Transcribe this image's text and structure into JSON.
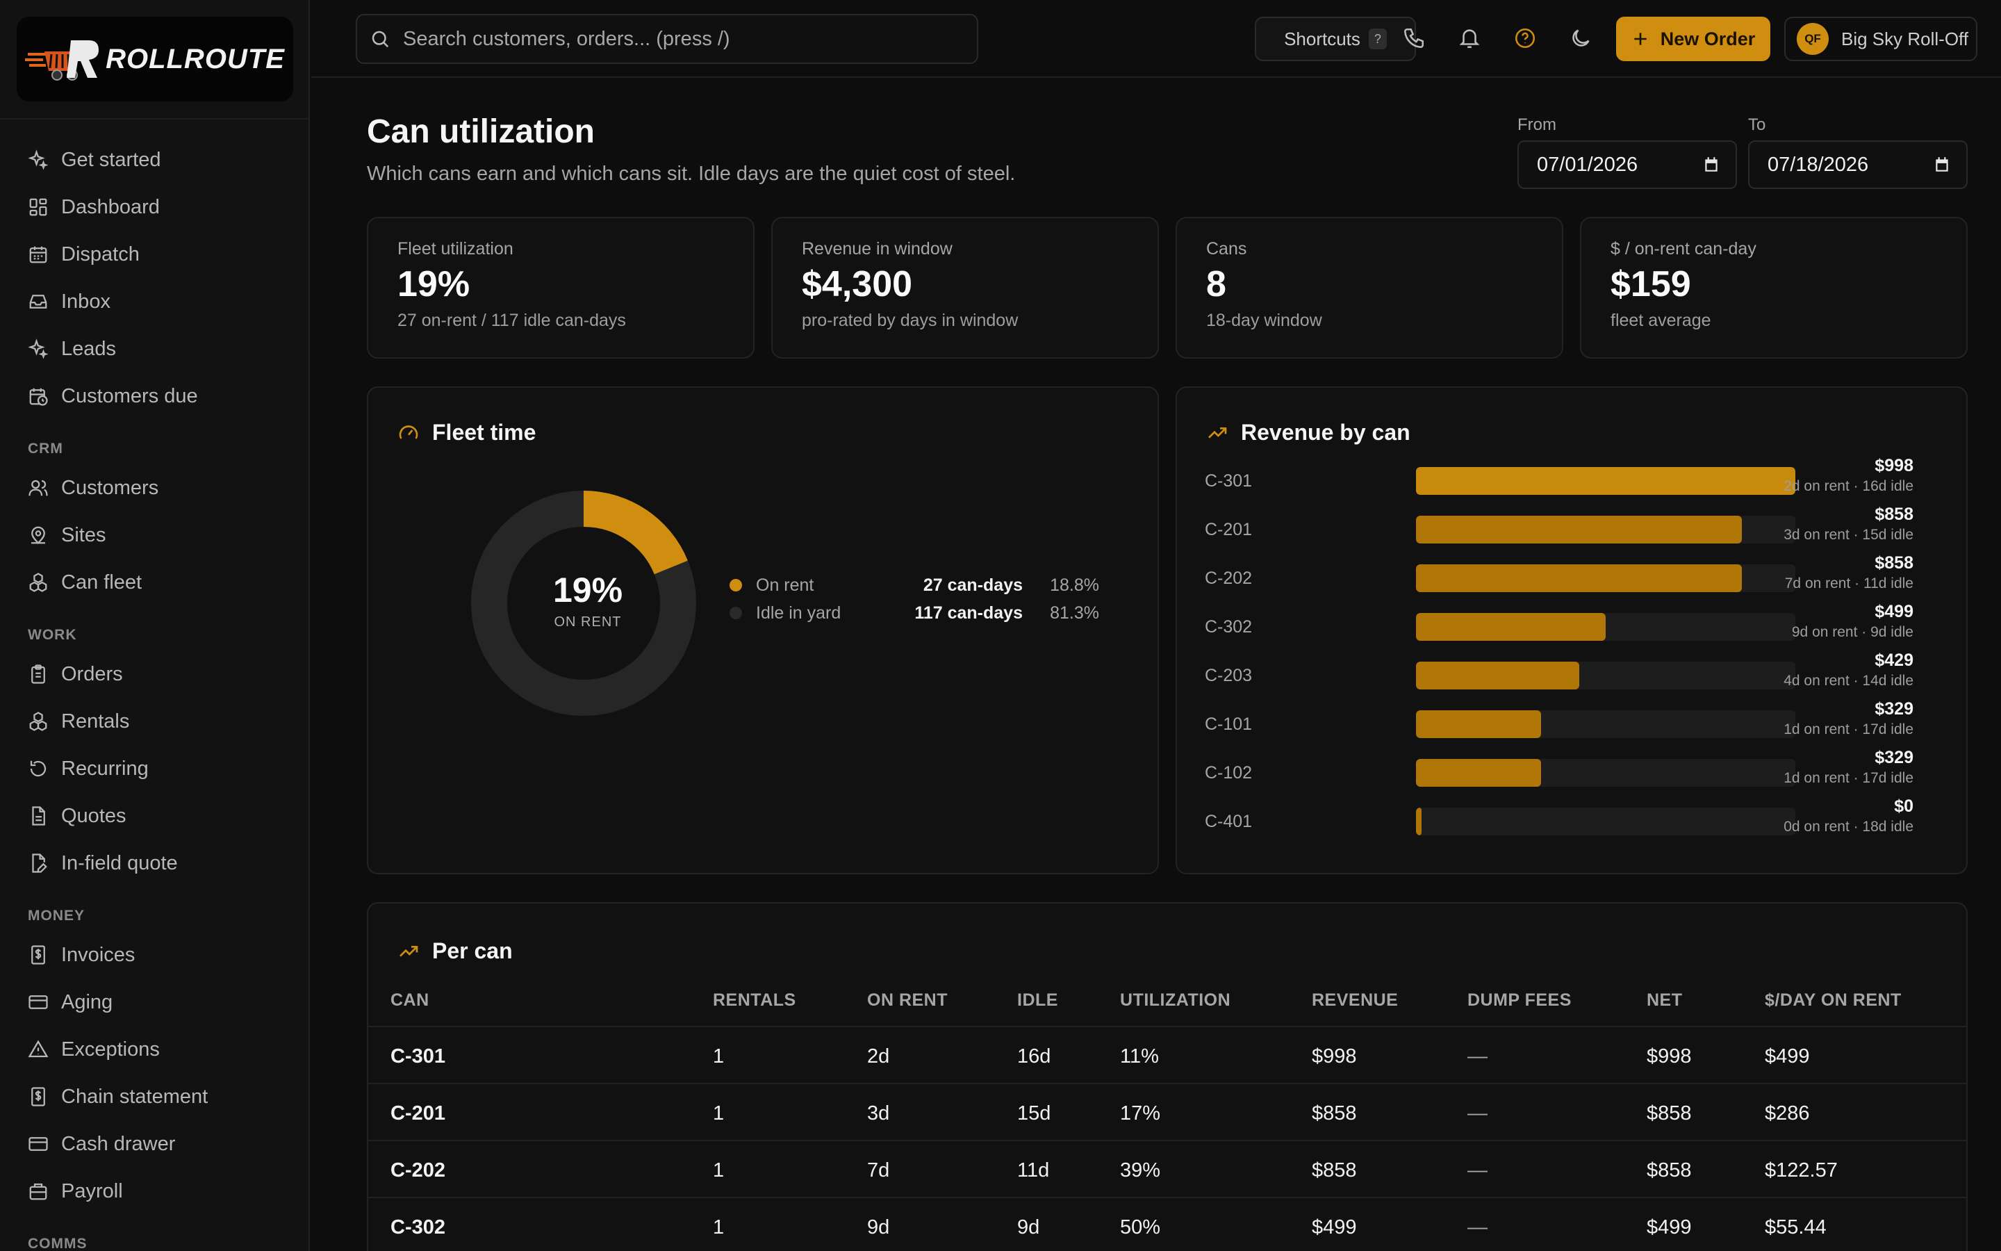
{
  "app": {
    "logo_text": "ROLLROUTE"
  },
  "sidebar": {
    "items": [
      {
        "label": "Get started",
        "icon": "sparkles-icon"
      },
      {
        "label": "Dashboard",
        "icon": "dashboard-icon"
      },
      {
        "label": "Dispatch",
        "icon": "calendar-icon"
      },
      {
        "label": "Inbox",
        "icon": "inbox-icon"
      },
      {
        "label": "Leads",
        "icon": "sparkles-icon"
      },
      {
        "label": "Customers due",
        "icon": "calendar-clock-icon"
      }
    ],
    "section_crm": "CRM",
    "crm_items": [
      {
        "label": "Customers",
        "icon": "users-icon"
      },
      {
        "label": "Sites",
        "icon": "map-pin-icon"
      },
      {
        "label": "Can fleet",
        "icon": "boxes-icon"
      }
    ],
    "section_work": "WORK",
    "work_items": [
      {
        "label": "Orders",
        "icon": "clipboard-icon"
      },
      {
        "label": "Rentals",
        "icon": "boxes-icon"
      },
      {
        "label": "Recurring",
        "icon": "refresh-icon"
      },
      {
        "label": "Quotes",
        "icon": "file-icon"
      },
      {
        "label": "In-field quote",
        "icon": "file-edit-icon"
      }
    ],
    "section_money": "MONEY",
    "money_items": [
      {
        "label": "Invoices",
        "icon": "dollar-file-icon"
      },
      {
        "label": "Aging",
        "icon": "card-icon"
      },
      {
        "label": "Exceptions",
        "icon": "alert-icon"
      },
      {
        "label": "Chain statement",
        "icon": "dollar-file-icon"
      },
      {
        "label": "Cash drawer",
        "icon": "card-icon"
      },
      {
        "label": "Payroll",
        "icon": "briefcase-icon"
      }
    ],
    "section_comms": "COMMS"
  },
  "topbar": {
    "search_placeholder": "Search customers, orders... (press /)",
    "shortcuts_label": "Shortcuts",
    "shortcuts_key": "?",
    "new_order_label": "New Order",
    "avatar_initials": "QF",
    "account_name": "Big Sky Roll-Off"
  },
  "header": {
    "title": "Can utilization",
    "subtitle": "Which cans earn and which cans sit. Idle days are the quiet cost of steel.",
    "from_label": "From",
    "from_value": "07/01/2026",
    "to_label": "To",
    "to_value": "07/18/2026"
  },
  "kpis": [
    {
      "label": "Fleet utilization",
      "value": "19%",
      "sub": "27 on-rent / 117 idle can-days"
    },
    {
      "label": "Revenue in window",
      "value": "$4,300",
      "sub": "pro-rated by days in window"
    },
    {
      "label": "Cans",
      "value": "8",
      "sub": "18-day window"
    },
    {
      "label": "$ / on-rent can-day",
      "value": "$159",
      "sub": "fleet average"
    }
  ],
  "fleet_time": {
    "title": "Fleet time",
    "center_pct": "19%",
    "center_caption": "ON RENT",
    "on_rent_fraction": 0.188,
    "legend": [
      {
        "name": "On rent",
        "days": "27 can-days",
        "pct": "18.8%",
        "color": "#d08e10"
      },
      {
        "name": "Idle in yard",
        "days": "117 can-days",
        "pct": "81.3%",
        "color": "#2a2a2a"
      }
    ]
  },
  "revenue_by_can": {
    "title": "Revenue by can",
    "max": 998,
    "rows": [
      {
        "can": "C-301",
        "value": 998,
        "amount": "$998",
        "meta": "2d on rent · 16d idle"
      },
      {
        "can": "C-201",
        "value": 858,
        "amount": "$858",
        "meta": "3d on rent · 15d idle"
      },
      {
        "can": "C-202",
        "value": 858,
        "amount": "$858",
        "meta": "7d on rent · 11d idle"
      },
      {
        "can": "C-302",
        "value": 499,
        "amount": "$499",
        "meta": "9d on rent · 9d idle"
      },
      {
        "can": "C-203",
        "value": 429,
        "amount": "$429",
        "meta": "4d on rent · 14d idle"
      },
      {
        "can": "C-101",
        "value": 329,
        "amount": "$329",
        "meta": "1d on rent · 17d idle"
      },
      {
        "can": "C-102",
        "value": 329,
        "amount": "$329",
        "meta": "1d on rent · 17d idle"
      },
      {
        "can": "C-401",
        "value": 0,
        "amount": "$0",
        "meta": "0d on rent · 18d idle"
      }
    ]
  },
  "per_can": {
    "title": "Per can",
    "columns": [
      "CAN",
      "RENTALS",
      "ON RENT",
      "IDLE",
      "UTILIZATION",
      "REVENUE",
      "DUMP FEES",
      "NET",
      "$/DAY ON RENT"
    ],
    "rows": [
      [
        "C-301",
        "1",
        "2d",
        "16d",
        "11%",
        "$998",
        "—",
        "$998",
        "$499"
      ],
      [
        "C-201",
        "1",
        "3d",
        "15d",
        "17%",
        "$858",
        "—",
        "$858",
        "$286"
      ],
      [
        "C-202",
        "1",
        "7d",
        "11d",
        "39%",
        "$858",
        "—",
        "$858",
        "$122.57"
      ],
      [
        "C-302",
        "1",
        "9d",
        "9d",
        "50%",
        "$499",
        "—",
        "$499",
        "$55.44"
      ]
    ]
  },
  "colors": {
    "accent": "#d08e10",
    "bar": "#b07708",
    "track": "#1d1d1d"
  }
}
